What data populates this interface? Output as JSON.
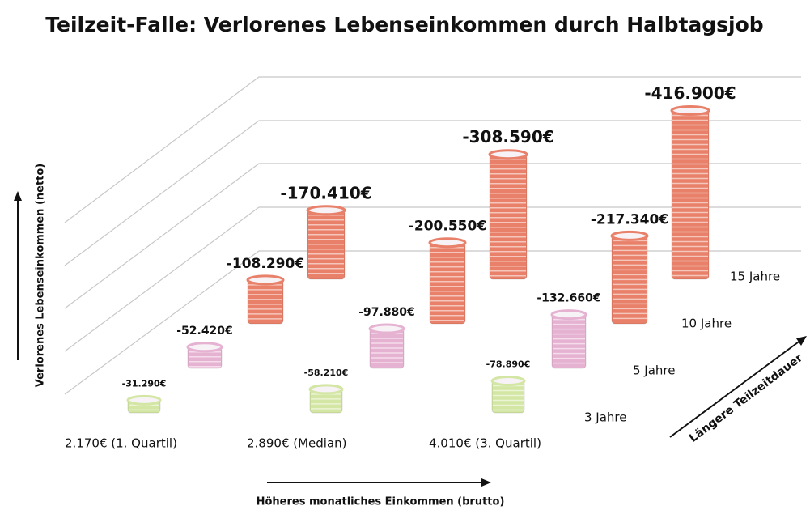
{
  "chart_data": {
    "type": "coin-stack",
    "title": "Teilzeit-Falle: Verlorenes Lebenseinkommen durch Halbtagsjob",
    "x_label": "Höheres monatliches Einkommen (brutto)",
    "y_label": "Verlorenes Lebenseinkommen (netto)",
    "z_label": "Längere Teilzeitdauer",
    "categories": [
      "2.170€ (1. Quartil)",
      "2.890€ (Median)",
      "4.010€ (3. Quartil)"
    ],
    "series": [
      {
        "name": "3 Jahre",
        "color": "#d3e6a3",
        "values": [
          -31290,
          -58210,
          -78890
        ],
        "value_labels": [
          "-31.290€",
          "-58.210€",
          "-78.890€"
        ]
      },
      {
        "name": "5 Jahre",
        "color": "#e6b2d2",
        "values": [
          -52420,
          -97880,
          -132660
        ],
        "value_labels": [
          "-52.420€",
          "-97.880€",
          "-132.660€"
        ]
      },
      {
        "name": "10 Jahre",
        "color": "#e8806a",
        "values": [
          -108290,
          -200550,
          -217340
        ],
        "value_labels": [
          "-108.290€",
          "-200.550€",
          "-217.340€"
        ]
      },
      {
        "name": "15 Jahre",
        "color": "#e8806a",
        "values": [
          -170410,
          -308590,
          -416900
        ],
        "value_labels": [
          "-170.410€",
          "-308.590€",
          "-416.900€"
        ]
      }
    ]
  }
}
